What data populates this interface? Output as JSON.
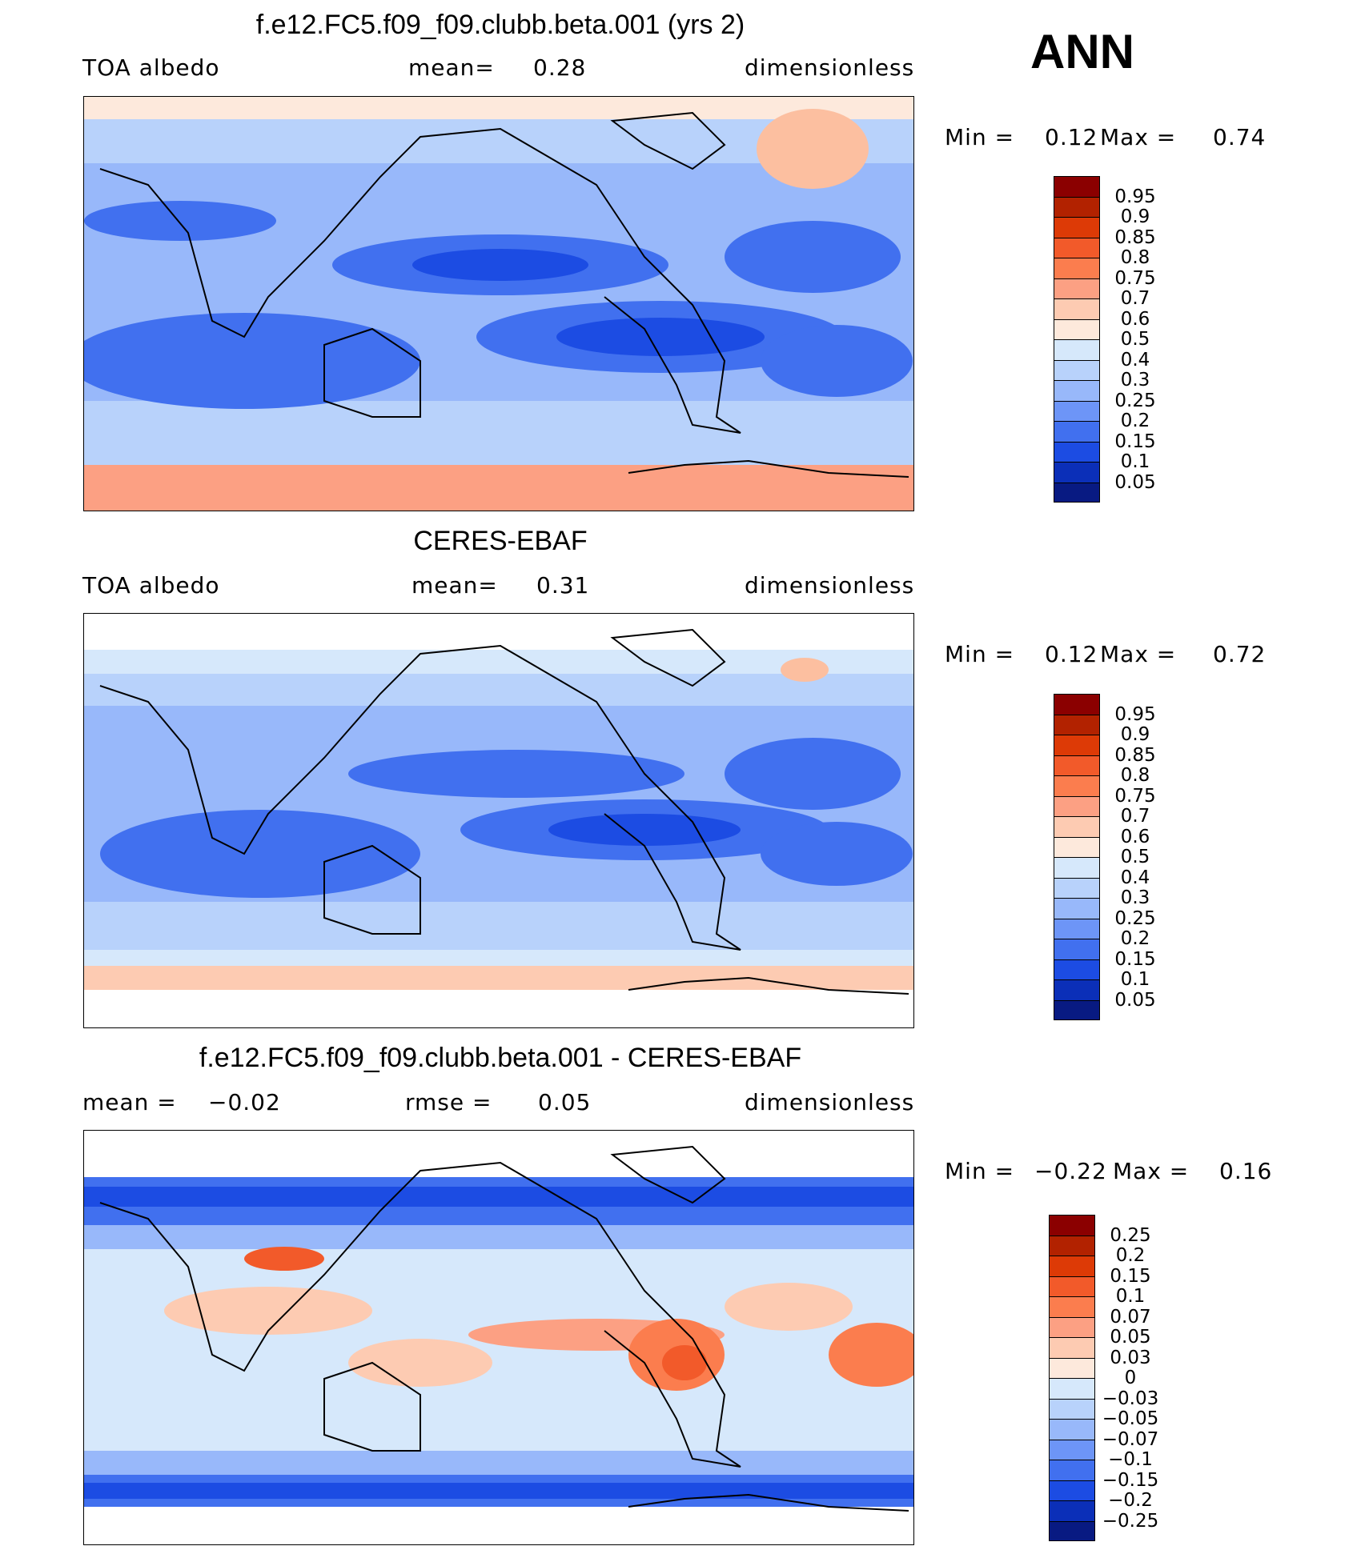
{
  "season": "ANN",
  "panels": [
    {
      "title": "f.e12.FC5.f09_f09.clubb.beta.001 (yrs 2)",
      "left_text": "TOA  albedo",
      "mid_label": "mean=",
      "mid_value": "0.28",
      "right_text": "dimensionless",
      "min_label": "Min  =",
      "min_value": "0.12",
      "max_label": "Max  =",
      "max_value": "0.74",
      "colorbar": [
        "0.95",
        "0.9",
        "0.85",
        "0.8",
        "0.75",
        "0.7",
        "0.6",
        "0.5",
        "0.4",
        "0.3",
        "0.25",
        "0.2",
        "0.15",
        "0.1",
        "0.05"
      ],
      "colors": [
        "#8b0000",
        "#b22200",
        "#dd3a06",
        "#f25a2a",
        "#fb7d4e",
        "#fca083",
        "#fdcbb2",
        "#fde9dc",
        "#d6e8fb",
        "#b8d2fb",
        "#98b8fa",
        "#6d95f7",
        "#4170ef",
        "#1c4ce3",
        "#0b2fb8",
        "#081a82"
      ]
    },
    {
      "title": "CERES-EBAF",
      "left_text": "TOA  albedo",
      "mid_label": "mean=",
      "mid_value": "0.31",
      "right_text": "dimensionless",
      "min_label": "Min  =",
      "min_value": "0.12",
      "max_label": "Max  =",
      "max_value": "0.72",
      "colorbar": [
        "0.95",
        "0.9",
        "0.85",
        "0.8",
        "0.75",
        "0.7",
        "0.6",
        "0.5",
        "0.4",
        "0.3",
        "0.25",
        "0.2",
        "0.15",
        "0.1",
        "0.05"
      ],
      "colors": [
        "#8b0000",
        "#b22200",
        "#dd3a06",
        "#f25a2a",
        "#fb7d4e",
        "#fca083",
        "#fdcbb2",
        "#fde9dc",
        "#d6e8fb",
        "#b8d2fb",
        "#98b8fa",
        "#6d95f7",
        "#4170ef",
        "#1c4ce3",
        "#0b2fb8",
        "#081a82"
      ]
    },
    {
      "title": "f.e12.FC5.f09_f09.clubb.beta.001 - CERES-EBAF",
      "left_text": "mean  =",
      "left_value": "−0.02",
      "mid_label": "rmse  =",
      "mid_value": "0.05",
      "right_text": "dimensionless",
      "min_label": "Min  =",
      "min_value": "−0.22",
      "max_label": "Max  =",
      "max_value": "0.16",
      "colorbar": [
        "0.25",
        "0.2",
        "0.15",
        "0.1",
        "0.07",
        "0.05",
        "0.03",
        "0",
        "−0.03",
        "−0.05",
        "−0.07",
        "−0.1",
        "−0.15",
        "−0.2",
        "−0.25"
      ],
      "colors": [
        "#8b0000",
        "#b22200",
        "#dd3a06",
        "#f25a2a",
        "#fb7d4e",
        "#fca083",
        "#fdcbb2",
        "#fde9dc",
        "#d6e8fb",
        "#b8d2fb",
        "#98b8fa",
        "#6d95f7",
        "#4170ef",
        "#1c4ce3",
        "#0b2fb8",
        "#081a82"
      ]
    }
  ]
}
